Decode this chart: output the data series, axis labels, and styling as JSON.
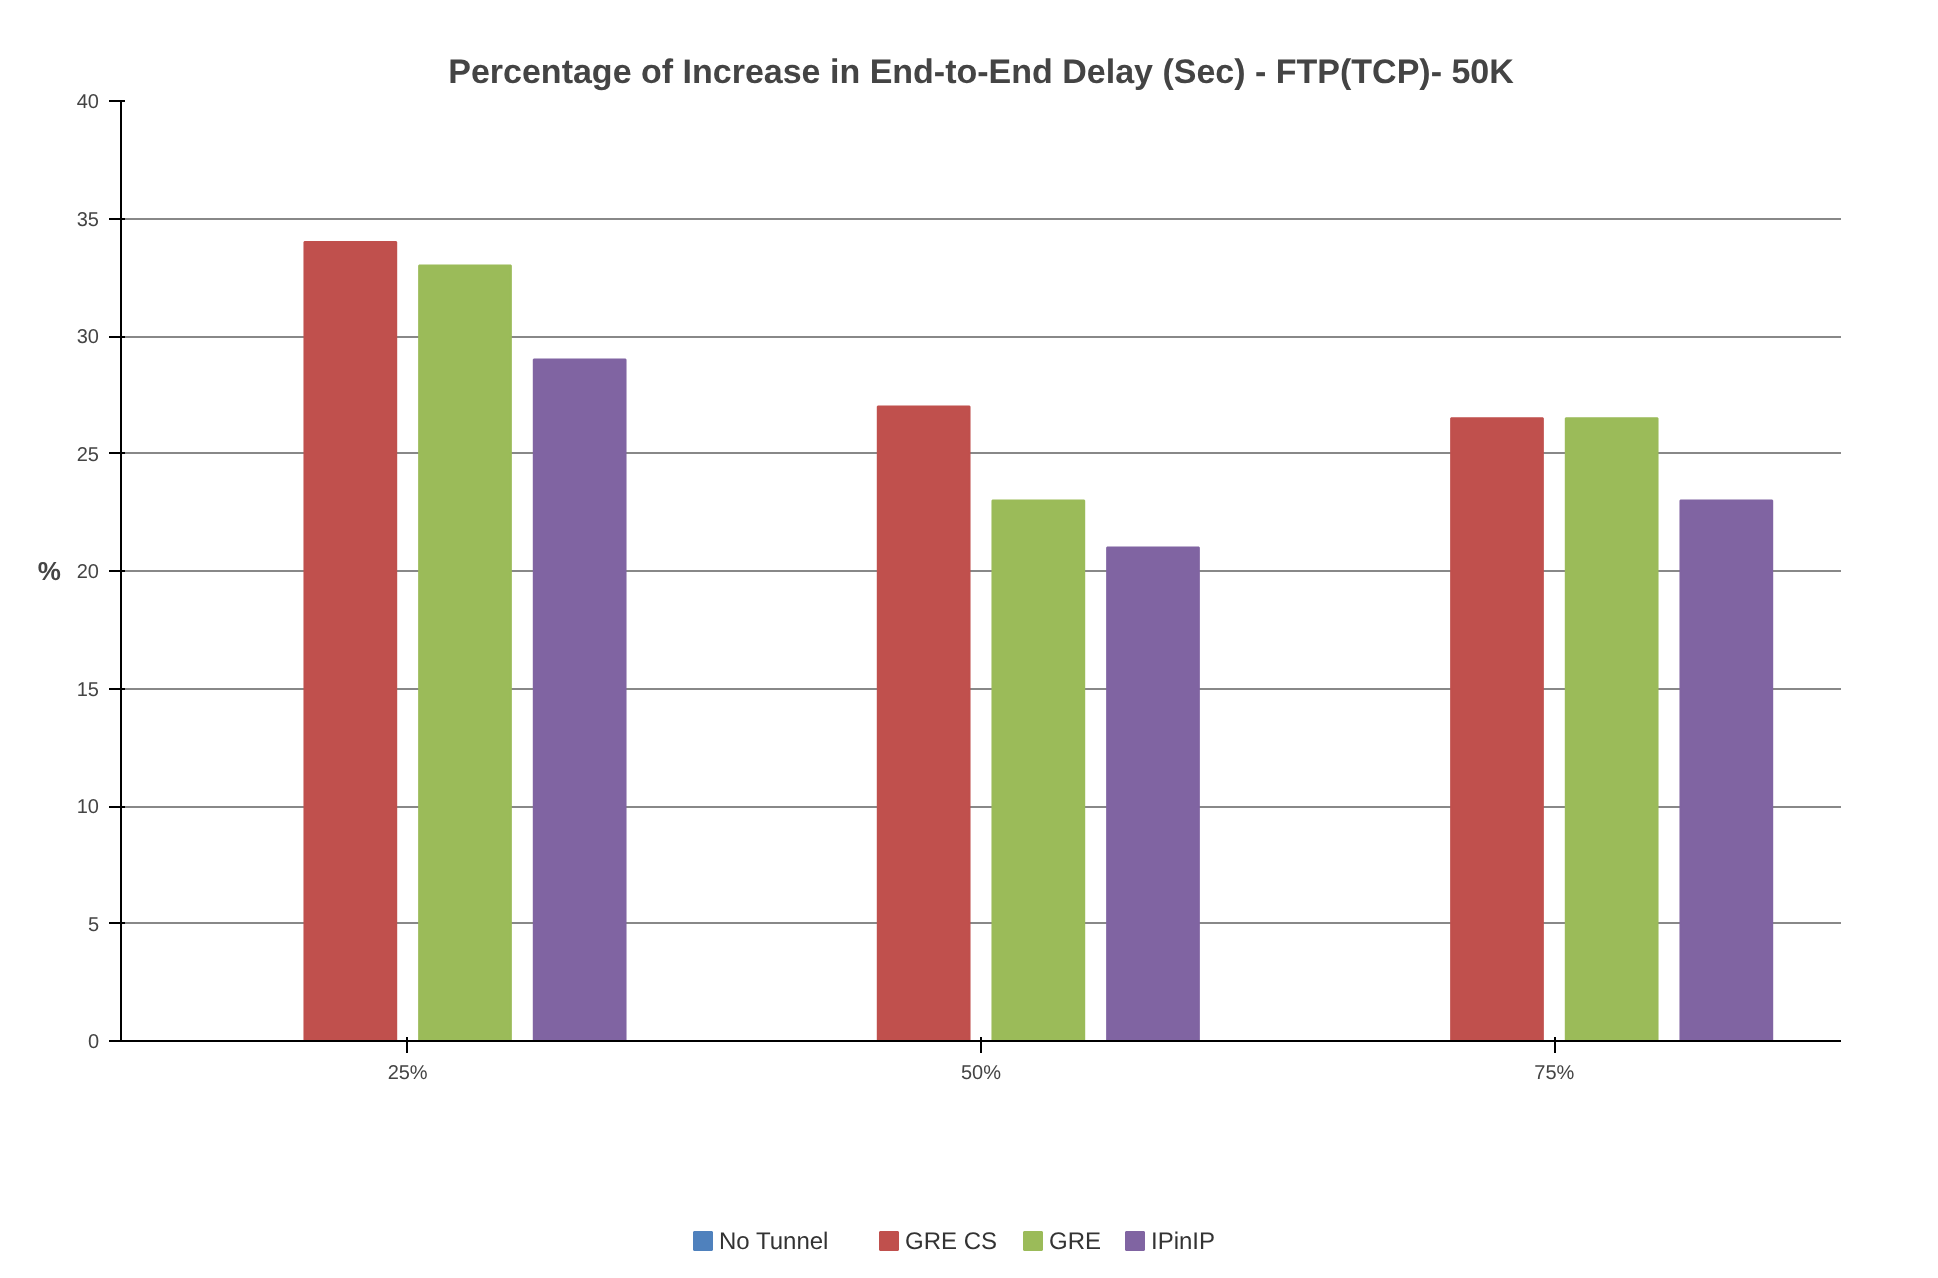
{
  "chart_data": {
    "type": "bar",
    "title": "Percentage of Increase in End-to-End Delay (Sec) - FTP(TCP)- 50K",
    "ylabel": "%",
    "categories": [
      "25%",
      "50%",
      "75%"
    ],
    "series": [
      {
        "name": "No Tunnel",
        "color": "#4f81bd",
        "values": [
          0,
          0,
          0
        ]
      },
      {
        "name": "GRE CS",
        "color": "#c0504d",
        "values": [
          34,
          27,
          26.5
        ]
      },
      {
        "name": "GRE",
        "color": "#9bbb59",
        "values": [
          33,
          23,
          26.5
        ]
      },
      {
        "name": "IPinIP",
        "color": "#8064a2",
        "values": [
          29,
          21,
          23
        ]
      }
    ],
    "ylim": [
      0,
      40
    ],
    "yticks": [
      0,
      5,
      10,
      15,
      20,
      25,
      30,
      35,
      40
    ],
    "grid": "y",
    "legend": "bottom"
  }
}
